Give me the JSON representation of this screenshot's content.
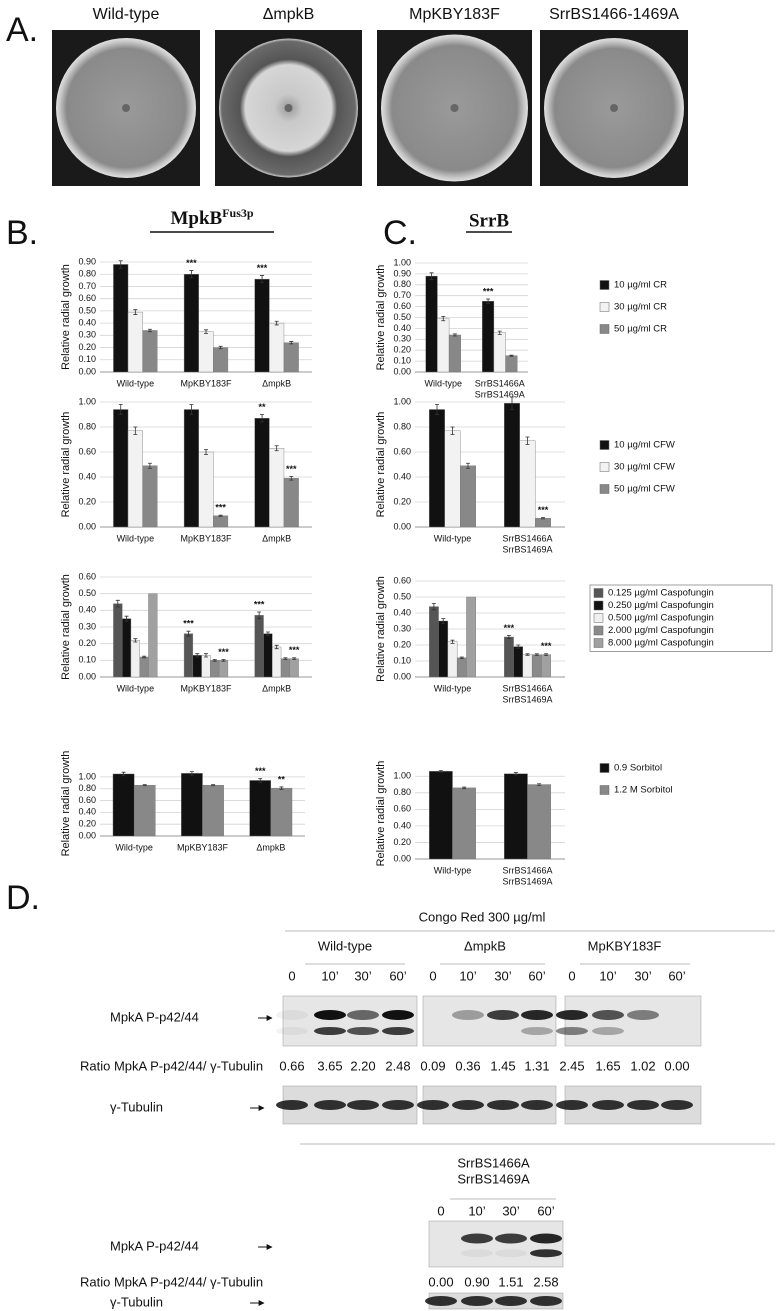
{
  "panel_a": {
    "label": "A.",
    "plates": [
      "Wild-type",
      "ΔmpkB",
      "MpKBY183F",
      "SrrBS1466-1469A"
    ]
  },
  "panel_b": {
    "label": "B.",
    "title": "MpkB",
    "title_sup": "Fus3p"
  },
  "panel_c": {
    "label": "C.",
    "title": "SrrB"
  },
  "chart_data": [
    {
      "type": "bar",
      "legend": "right",
      "legend_series": [
        {
          "name": "10 µg/ml CR",
          "color": "#111111"
        },
        {
          "name": "30 µg/ml CR",
          "color": "#f2f2f2"
        },
        {
          "name": "50 µg/ml CR",
          "color": "#888888"
        }
      ],
      "panels": [
        {
          "ylabel": "Relative radial growth",
          "categories": [
            "Wild-type",
            "MpKBY183F",
            "ΔmpkB"
          ],
          "ylim": [
            0,
            0.9
          ],
          "yticks": [
            {
              "value": 0,
              "label": "0.00"
            },
            {
              "value": 0.1,
              "label": "0.10"
            },
            {
              "value": 0.2,
              "label": "0.20"
            },
            {
              "value": 0.3,
              "label": "0.30"
            },
            {
              "value": 0.4,
              "label": "0.40"
            },
            {
              "value": 0.5,
              "label": "0.50"
            },
            {
              "value": 0.6,
              "label": "0.60"
            },
            {
              "value": 0.7,
              "label": "0.70"
            },
            {
              "value": 0.8,
              "label": "0.80"
            },
            {
              "value": 0.9,
              "label": "0.90"
            }
          ],
          "series": [
            {
              "values": [
                0.88,
                0.8,
                0.76
              ],
              "errors": [
                0.03,
                0.03,
                0.03
              ],
              "annotations": [
                null,
                "***",
                "***"
              ]
            },
            {
              "values": [
                0.49,
                0.33,
                0.4
              ],
              "errors": [
                0.02,
                0.015,
                0.015
              ]
            },
            {
              "values": [
                0.34,
                0.2,
                0.24
              ],
              "errors": [
                0.01,
                0.01,
                0.01
              ]
            }
          ]
        },
        {
          "ylabel": "Relative radial growth",
          "categories": [
            "Wild-type",
            [
              "SrrBS1466A",
              "SrrBS1469A"
            ]
          ],
          "ylim": [
            0,
            1
          ],
          "yticks": [
            {
              "value": 0,
              "label": "0.00"
            },
            {
              "value": 0.1,
              "label": "0.10"
            },
            {
              "value": 0.2,
              "label": "0.20"
            },
            {
              "value": 0.3,
              "label": "0.30"
            },
            {
              "value": 0.4,
              "label": "0.40"
            },
            {
              "value": 0.5,
              "label": "0.50"
            },
            {
              "value": 0.6,
              "label": "0.60"
            },
            {
              "value": 0.7,
              "label": "0.70"
            },
            {
              "value": 0.8,
              "label": "0.80"
            },
            {
              "value": 0.9,
              "label": "0.90"
            },
            {
              "value": 1,
              "label": "1.00"
            }
          ],
          "series": [
            {
              "values": [
                0.88,
                0.65
              ],
              "errors": [
                0.03,
                0.02
              ],
              "annotations": [
                null,
                "***"
              ]
            },
            {
              "values": [
                0.49,
                0.36
              ],
              "errors": [
                0.02,
                0.015
              ]
            },
            {
              "values": [
                0.34,
                0.15
              ],
              "errors": [
                0.01,
                0.005
              ]
            }
          ]
        }
      ]
    },
    {
      "type": "bar",
      "legend": "right",
      "legend_series": [
        {
          "name": "10 µg/ml CFW",
          "color": "#111111"
        },
        {
          "name": "30 µg/ml CFW",
          "color": "#f2f2f2"
        },
        {
          "name": "50 µg/ml CFW",
          "color": "#888888"
        }
      ],
      "panels": [
        {
          "ylabel": "Relative radial growth",
          "categories": [
            "Wild-type",
            "MpKBY183F",
            "ΔmpkB"
          ],
          "ylim": [
            0,
            1
          ],
          "yticks": [
            {
              "value": 0,
              "label": "0.00"
            },
            {
              "value": 0.2,
              "label": "0.20"
            },
            {
              "value": 0.4,
              "label": "0.40"
            },
            {
              "value": 0.6,
              "label": "0.60"
            },
            {
              "value": 0.8,
              "label": "0.80"
            },
            {
              "value": 1,
              "label": "1.00"
            }
          ],
          "series": [
            {
              "values": [
                0.94,
                0.94,
                0.87
              ],
              "errors": [
                0.04,
                0.04,
                0.03
              ],
              "annotations": [
                null,
                null,
                "**"
              ]
            },
            {
              "values": [
                0.77,
                0.6,
                0.63
              ],
              "errors": [
                0.03,
                0.02,
                0.02
              ]
            },
            {
              "values": [
                0.49,
                0.09,
                0.39
              ],
              "errors": [
                0.02,
                0.005,
                0.015
              ],
              "annotations": [
                null,
                "***",
                "***"
              ]
            }
          ]
        },
        {
          "ylabel": "Relative radial growth",
          "categories": [
            "Wild-type",
            [
              "SrrBS1466A",
              "SrrBS1469A"
            ]
          ],
          "ylim": [
            0,
            1
          ],
          "yticks": [
            {
              "value": 0,
              "label": "0.00"
            },
            {
              "value": 0.2,
              "label": "0.20"
            },
            {
              "value": 0.4,
              "label": "0.40"
            },
            {
              "value": 0.6,
              "label": "0.60"
            },
            {
              "value": 0.8,
              "label": "0.80"
            },
            {
              "value": 1,
              "label": "1.00"
            }
          ],
          "series": [
            {
              "values": [
                0.94,
                0.99
              ],
              "errors": [
                0.04,
                0.05
              ]
            },
            {
              "values": [
                0.77,
                0.69
              ],
              "errors": [
                0.03,
                0.03
              ]
            },
            {
              "values": [
                0.49,
                0.07
              ],
              "errors": [
                0.02,
                0.005
              ],
              "annotations": [
                null,
                "***"
              ]
            }
          ]
        }
      ]
    },
    {
      "type": "bar",
      "legend": "right",
      "legend_series": [
        {
          "name": "0.125 µg/ml Caspofungin",
          "color": "#555555"
        },
        {
          "name": "0.250 µg/ml Caspofungin",
          "color": "#111111"
        },
        {
          "name": "0.500 µg/ml Caspofungin",
          "color": "#f0f0f0"
        },
        {
          "name": "2.000 µg/ml Caspofungin",
          "color": "#8a8a8a"
        },
        {
          "name": "8.000 µg/ml Caspofungin",
          "color": "#a0a0a0"
        }
      ],
      "panels": [
        {
          "ylabel": "Relative radial growth",
          "categories": [
            "Wild-type",
            "MpKBY183F",
            "ΔmpkB"
          ],
          "ylim": [
            0,
            0.6
          ],
          "yticks": [
            {
              "value": 0,
              "label": "0.00"
            },
            {
              "value": 0.1,
              "label": "0.10"
            },
            {
              "value": 0.2,
              "label": "0.20"
            },
            {
              "value": 0.3,
              "label": "0.30"
            },
            {
              "value": 0.4,
              "label": "0.40"
            },
            {
              "value": 0.5,
              "label": "0.50"
            },
            {
              "value": 0.6,
              "label": "0.60"
            }
          ],
          "series": [
            {
              "values": [
                0.44,
                0.26,
                0.37
              ],
              "errors": [
                0.02,
                0.015,
                0.02
              ],
              "annotations": [
                null,
                "***",
                "***"
              ]
            },
            {
              "values": [
                0.35,
                0.13,
                0.26
              ],
              "errors": [
                0.015,
                0.01,
                0.01
              ]
            },
            {
              "values": [
                0.22,
                0.13,
                0.18
              ],
              "errors": [
                0.01,
                0.01,
                0.01
              ]
            },
            {
              "values": [
                0.12,
                0.1,
                0.11
              ],
              "errors": [
                0.005,
                0.005,
                0.005
              ]
            },
            {
              "values": [
                0.5,
                0.1,
                0.11
              ],
              "errors": [
                null,
                0.005,
                0.005
              ],
              "annotations": [
                null,
                "***",
                "***"
              ]
            }
          ]
        },
        {
          "ylabel": "Relative radial growth",
          "categories": [
            "Wild-type",
            [
              "SrrBS1466A",
              "SrrBS1469A"
            ]
          ],
          "ylim": [
            0,
            0.6
          ],
          "yticks": [
            {
              "value": 0,
              "label": "0.00"
            },
            {
              "value": 0.1,
              "label": "0.10"
            },
            {
              "value": 0.2,
              "label": "0.20"
            },
            {
              "value": 0.3,
              "label": "0.30"
            },
            {
              "value": 0.4,
              "label": "0.40"
            },
            {
              "value": 0.5,
              "label": "0.50"
            },
            {
              "value": 0.6,
              "label": "0.60"
            }
          ],
          "series": [
            {
              "values": [
                0.44,
                0.25
              ],
              "errors": [
                0.02,
                0.01
              ],
              "annotations": [
                null,
                "***"
              ]
            },
            {
              "values": [
                0.35,
                0.19
              ],
              "errors": [
                0.015,
                0.01
              ]
            },
            {
              "values": [
                0.22,
                0.14
              ],
              "errors": [
                0.01,
                0.005
              ]
            },
            {
              "values": [
                0.12,
                0.14
              ],
              "errors": [
                0.005,
                0.005
              ]
            },
            {
              "values": [
                0.5,
                0.14
              ],
              "errors": [
                null,
                0.005
              ],
              "annotations": [
                null,
                "***"
              ]
            }
          ]
        }
      ]
    },
    {
      "type": "bar",
      "legend": "right",
      "legend_series": [
        {
          "name": "0.9 Sorbitol",
          "color": "#111111"
        },
        {
          "name": "1.2 M Sorbitol",
          "color": "#888888"
        }
      ],
      "panels": [
        {
          "ylabel": "Relative radial growth",
          "categories": [
            "Wild-type",
            "MpKBY183F",
            "ΔmpkB"
          ],
          "ylim": [
            0,
            1.1
          ],
          "yticks": [
            {
              "value": 0,
              "label": "0.00"
            },
            {
              "value": 0.2,
              "label": "0.20"
            },
            {
              "value": 0.4,
              "label": "0.40"
            },
            {
              "value": 0.6,
              "label": "0.60"
            },
            {
              "value": 0.8,
              "label": "0.80"
            },
            {
              "value": 1,
              "label": "1.00"
            }
          ],
          "series": [
            {
              "values": [
                1.05,
                1.06,
                0.94
              ],
              "errors": [
                0.03,
                0.03,
                0.03
              ],
              "annotations": [
                null,
                null,
                "***"
              ]
            },
            {
              "values": [
                0.86,
                0.86,
                0.81
              ],
              "errors": [
                0.01,
                0.01,
                0.02
              ],
              "annotations": [
                null,
                null,
                "**"
              ]
            }
          ]
        },
        {
          "ylabel": "Relative radial growth",
          "categories": [
            "Wild-type",
            [
              "SrrBS1466A",
              "SrrBS1469A"
            ]
          ],
          "ylim": [
            0,
            1.1
          ],
          "yticks": [
            {
              "value": 0,
              "label": "0.00"
            },
            {
              "value": 0.2,
              "label": "0.20"
            },
            {
              "value": 0.4,
              "label": "0.40"
            },
            {
              "value": 0.6,
              "label": "0.60"
            },
            {
              "value": 0.8,
              "label": "0.80"
            },
            {
              "value": 1,
              "label": "1.00"
            }
          ],
          "series": [
            {
              "values": [
                1.06,
                1.03
              ],
              "errors": [
                0.01,
                0.015
              ]
            },
            {
              "values": [
                0.86,
                0.9
              ],
              "errors": [
                0.01,
                0.01
              ]
            }
          ]
        }
      ]
    }
  ],
  "panel_d": {
    "label": "D.",
    "treatment": "Congo Red 300 µg/ml",
    "times": [
      "0",
      "10’",
      "30’",
      "60’"
    ],
    "row_labels": {
      "phospho": "MpkA P-p42/44",
      "ratio": "Ratio MpkA P-p42/44/ γ-Tubulin",
      "tubulin": "γ-Tubulin"
    },
    "blots": [
      {
        "strain": [
          "Wild-type"
        ],
        "ratios": [
          "0.66",
          "3.65",
          "2.20",
          "2.48"
        ]
      },
      {
        "strain": [
          "ΔmpkB"
        ],
        "ratios": [
          "0.09",
          "0.36",
          "1.45",
          "1.31"
        ]
      },
      {
        "strain": [
          "MpKBY183F"
        ],
        "ratios": [
          "2.45",
          "1.65",
          "1.02",
          "0.00"
        ]
      },
      {
        "strain": [
          "SrrBS1466A",
          "SrrBS1469A"
        ],
        "ratios": [
          "0.00",
          "0.90",
          "1.51",
          "2.58"
        ]
      }
    ]
  }
}
